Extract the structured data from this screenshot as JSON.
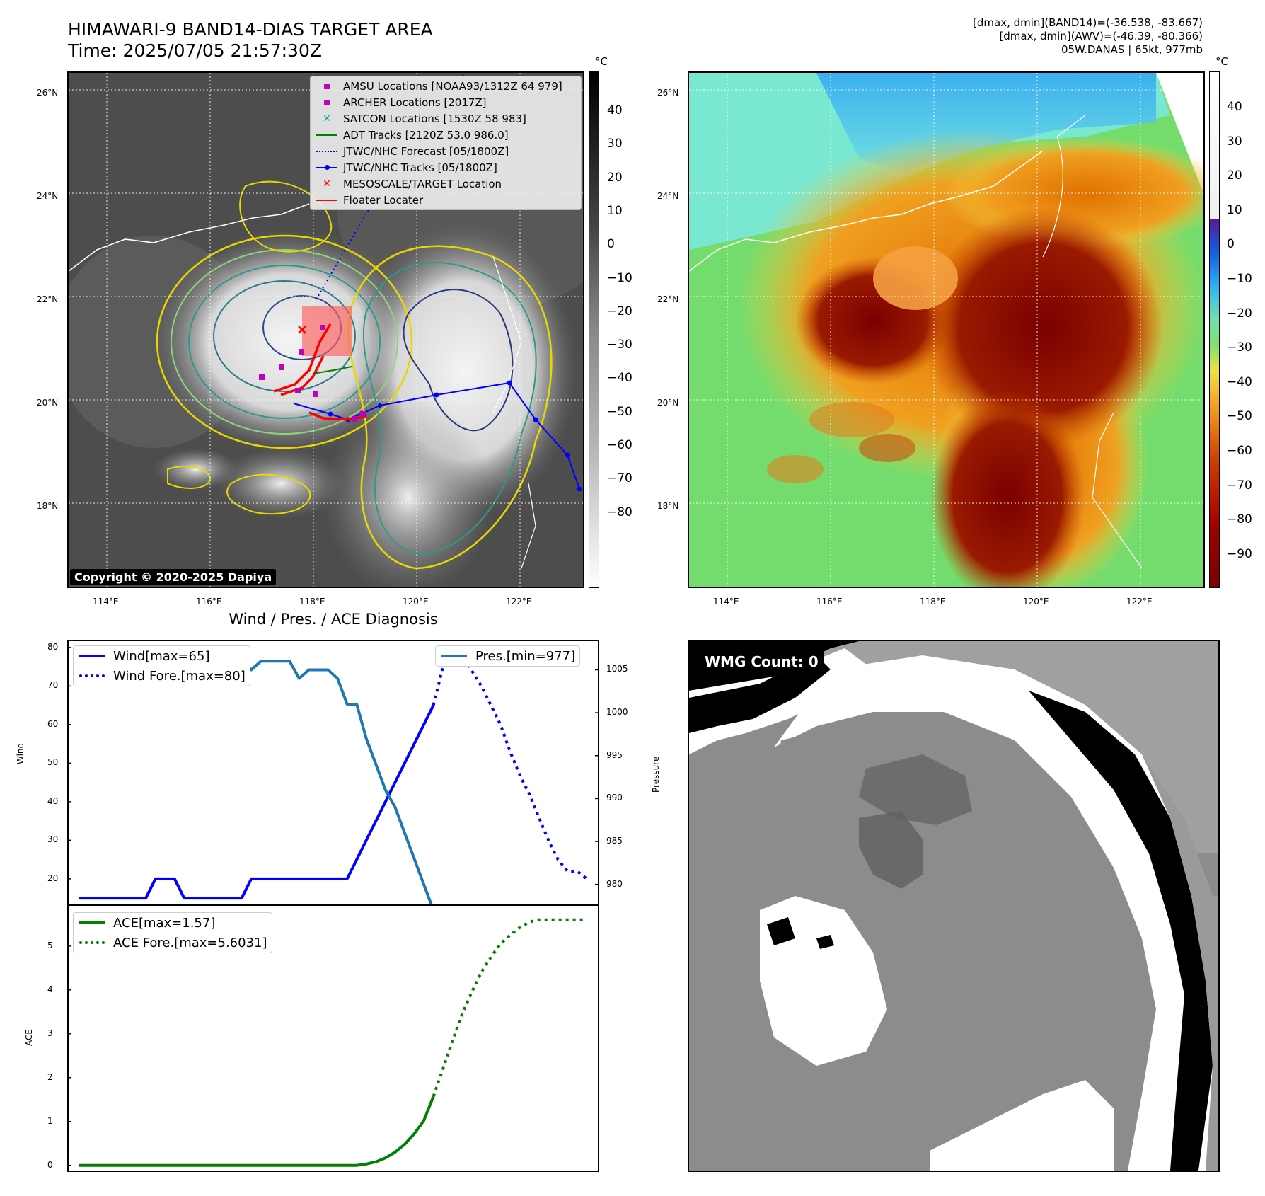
{
  "header": {
    "title_line1": "HIMAWARI-9 BAND14-DIAS TARGET AREA",
    "title_line2": "Time: 2025/07/05 21:57:30Z",
    "info_line1": "[dmax, dmin](BAND14)=(-36.538, -83.667)",
    "info_line2": "[dmax, dmin](AWV)=(-46.39, -80.366)",
    "info_line3": "05W.DANAS | 65kt, 977mb"
  },
  "map_left": {
    "lat_labels": [
      "26°N",
      "24°N",
      "22°N",
      "20°N",
      "18°N"
    ],
    "lon_labels": [
      "114°E",
      "116°E",
      "118°E",
      "120°E",
      "122°E"
    ],
    "copyright": "Copyright © 2020-2025 Dapiya",
    "colorbar_unit": "°C",
    "colorbar_ticks": [
      "40",
      "30",
      "20",
      "10",
      "0",
      "−10",
      "−20",
      "−30",
      "−40",
      "−50",
      "−60",
      "−70",
      "−80"
    ],
    "legend": [
      {
        "label": "AMSU Locations [NOAA93/1312Z 64 979]",
        "symbol": "square",
        "color": "#c000c0"
      },
      {
        "label": "ARCHER Locations [2017Z]",
        "symbol": "square",
        "color": "#c000c0"
      },
      {
        "label": "SATCON Locations [1530Z 58 983]",
        "symbol": "x",
        "color": "#00b0b0"
      },
      {
        "label": "ADT Tracks [2120Z 53.0 986.0]",
        "symbol": "line",
        "color": "#008000"
      },
      {
        "label": "JTWC/NHC Forecast [05/1800Z]",
        "symbol": "dotted",
        "color": "#0000ff"
      },
      {
        "label": "JTWC/NHC Tracks [05/1800Z]",
        "symbol": "line-dot",
        "color": "#0000ff"
      },
      {
        "label": "MESOSCALE/TARGET Location",
        "symbol": "x",
        "color": "#ff0000"
      },
      {
        "label": "Floater Locater",
        "symbol": "line",
        "color": "#ff0000"
      }
    ]
  },
  "map_right": {
    "lat_labels": [
      "26°N",
      "24°N",
      "22°N",
      "20°N",
      "18°N"
    ],
    "lon_labels": [
      "114°E",
      "116°E",
      "118°E",
      "120°E",
      "122°E"
    ],
    "colorbar_unit": "°C",
    "colorbar_ticks": [
      "40",
      "30",
      "20",
      "10",
      "0",
      "−10",
      "−20",
      "−30",
      "−40",
      "−50",
      "−60",
      "−70",
      "−80",
      "−90"
    ]
  },
  "diagnosis_title": "Wind / Pres. / ACE Diagnosis",
  "chart_data": [
    {
      "type": "line",
      "ylabel": "Wind",
      "y2label": "Pressure",
      "ylim": [
        13,
        82
      ],
      "y2lim": [
        977.5,
        1008.5
      ],
      "yticks": [
        20,
        30,
        40,
        50,
        60,
        70,
        80
      ],
      "y2ticks": [
        980,
        985,
        990,
        995,
        1000,
        1005
      ],
      "series": [
        {
          "name": "Wind[max=65]",
          "style": "solid",
          "color": "#0000ff",
          "x": [
            0,
            1,
            2,
            3,
            4,
            5,
            6,
            7,
            8,
            9,
            10,
            11,
            12,
            13,
            14,
            15,
            16,
            17,
            18,
            19,
            20,
            21,
            22,
            23,
            24,
            25,
            26,
            27,
            28,
            29,
            30,
            31,
            32,
            33,
            34,
            35,
            36,
            37
          ],
          "values": [
            15,
            15,
            15,
            15,
            15,
            15,
            15,
            15,
            20,
            20,
            20,
            15,
            15,
            15,
            15,
            15,
            15,
            15,
            20,
            20,
            20,
            20,
            20,
            20,
            20,
            20,
            20,
            20,
            20,
            25,
            30,
            35,
            40,
            45,
            50,
            55,
            60,
            65
          ]
        },
        {
          "name": "Wind Fore.[max=80]",
          "style": "dotted",
          "color": "#0000ff",
          "x": [
            37,
            38,
            39,
            40,
            41,
            42,
            43,
            44,
            45,
            46,
            47,
            48,
            49,
            50,
            51,
            52,
            53
          ],
          "values": [
            65,
            75,
            80,
            78,
            74,
            70,
            65,
            60,
            53,
            47,
            42,
            36,
            30,
            25,
            22,
            22,
            20
          ]
        },
        {
          "name": "Pres.[min=977]",
          "style": "solid",
          "color": "#1f77b4",
          "axis": "right",
          "x": [
            0,
            1,
            2,
            3,
            4,
            5,
            6,
            7,
            8,
            9,
            10,
            11,
            12,
            13,
            14,
            15,
            16,
            17,
            18,
            19,
            20,
            21,
            22,
            23,
            24,
            25,
            26,
            27,
            28,
            29,
            30,
            31,
            32,
            33,
            34,
            35,
            36,
            37
          ],
          "values": [
            1007,
            1007,
            1007,
            1007,
            1007,
            1007,
            1004,
            1004,
            1004,
            1004,
            1004,
            1005,
            1005,
            1005,
            1005,
            1005,
            1006,
            1006,
            1005,
            1006,
            1006,
            1006,
            1006,
            1004,
            1005,
            1005,
            1005,
            1004,
            1001,
            1001,
            997,
            994,
            991,
            989,
            986,
            983,
            980,
            977
          ]
        }
      ]
    },
    {
      "type": "line",
      "ylabel": "ACE",
      "ylim": [
        -0.15,
        5.95
      ],
      "yticks": [
        0,
        1,
        2,
        3,
        4,
        5
      ],
      "series": [
        {
          "name": "ACE[max=1.57]",
          "style": "solid",
          "color": "#008000",
          "x": [
            0,
            1,
            2,
            3,
            4,
            5,
            6,
            7,
            8,
            9,
            10,
            11,
            12,
            13,
            14,
            15,
            16,
            17,
            18,
            19,
            20,
            21,
            22,
            23,
            24,
            25,
            26,
            27,
            28,
            29,
            30,
            31,
            32,
            33,
            34,
            35,
            36,
            37
          ],
          "values": [
            0,
            0,
            0,
            0,
            0,
            0,
            0,
            0,
            0,
            0,
            0,
            0,
            0,
            0,
            0,
            0,
            0,
            0,
            0,
            0,
            0,
            0,
            0,
            0,
            0,
            0,
            0,
            0,
            0,
            0,
            0.03,
            0.08,
            0.17,
            0.3,
            0.48,
            0.72,
            1.02,
            1.57
          ]
        },
        {
          "name": "ACE Fore.[max=5.6031]",
          "style": "dotted",
          "color": "#008000",
          "x": [
            37,
            38,
            39,
            40,
            41,
            42,
            43,
            44,
            45,
            46,
            47,
            48,
            49,
            50,
            51,
            52,
            53
          ],
          "values": [
            1.57,
            2.2,
            2.85,
            3.45,
            3.95,
            4.4,
            4.75,
            5.05,
            5.25,
            5.42,
            5.55,
            5.6,
            5.6,
            5.6,
            5.6,
            5.6,
            5.6
          ]
        }
      ]
    }
  ],
  "wmg": {
    "label": "WMG Count: 0"
  }
}
